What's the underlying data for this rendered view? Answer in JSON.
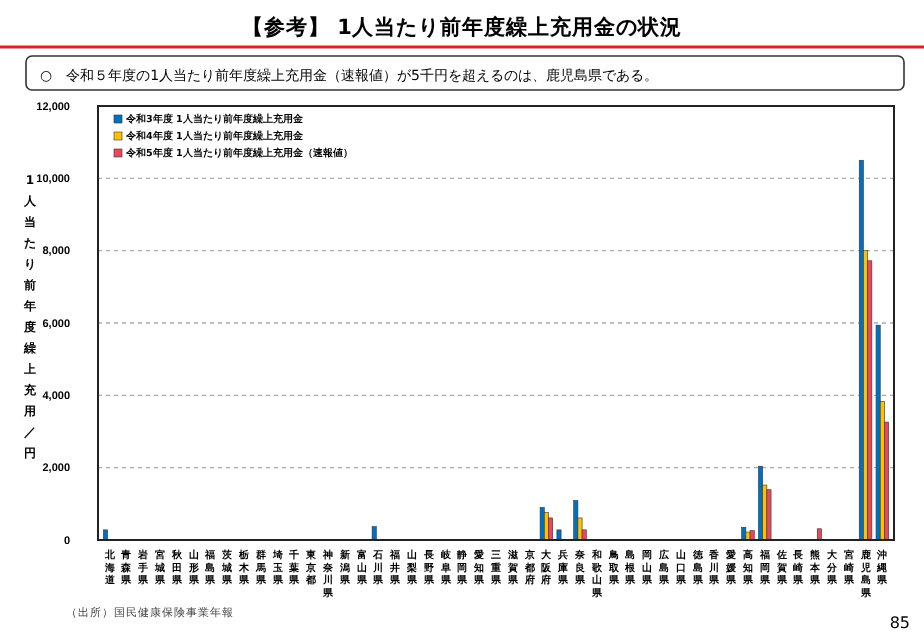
{
  "chart_data": {
    "type": "bar",
    "title": "【参考】 1人当たり前年度繰上充用金の状況",
    "subtitle": "○　令和５年度の1人当たり前年度繰上充用金（速報値）が5千円を超えるのは、鹿児島県である。",
    "ylabel": "1人当たり前年度繰上充用／円",
    "annotations": [
      "（出所）国民健康保険事業年報",
      "85"
    ],
    "categories": [
      "北海道",
      "青森県",
      "岩手県",
      "宮城県",
      "秋田県",
      "山形県",
      "福島県",
      "茨城県",
      "栃木県",
      "群馬県",
      "埼玉県",
      "千葉県",
      "東京都",
      "神奈川県",
      "新潟県",
      "富山県",
      "石川県",
      "福井県",
      "山梨県",
      "長野県",
      "岐阜県",
      "静岡県",
      "愛知県",
      "三重県",
      "滋賀県",
      "京都府",
      "大阪府",
      "兵庫県",
      "奈良県",
      "和歌山県",
      "鳥取県",
      "島根県",
      "岡山県",
      "広島県",
      "山口県",
      "徳島県",
      "香川県",
      "愛媛県",
      "高知県",
      "福岡県",
      "佐賀県",
      "長崎県",
      "熊本県",
      "大分県",
      "宮崎県",
      "鹿児島県",
      "沖縄県"
    ],
    "series": [
      {
        "name": "令和3年度 1人当たり前年度繰上充用金",
        "color": "#0070c0",
        "values": [
          280,
          0,
          0,
          0,
          0,
          0,
          0,
          0,
          0,
          0,
          0,
          null,
          0,
          0,
          0,
          0,
          370,
          0,
          0,
          0,
          0,
          0,
          0,
          0,
          0,
          0,
          900,
          280,
          1090,
          0,
          0,
          0,
          0,
          0,
          0,
          0,
          0,
          0,
          350,
          2040,
          0,
          0,
          0,
          0,
          0,
          10500,
          5940
        ]
      },
      {
        "name": "令和4年度 1人当たり前年度繰上充用金",
        "color": "#ffc000",
        "values": [
          0,
          0,
          0,
          0,
          0,
          0,
          0,
          0,
          0,
          0,
          0,
          null,
          0,
          0,
          0,
          0,
          0,
          0,
          0,
          0,
          0,
          0,
          0,
          0,
          0,
          0,
          760,
          0,
          610,
          0,
          0,
          0,
          0,
          0,
          0,
          0,
          0,
          0,
          220,
          1520,
          0,
          0,
          0,
          0,
          0,
          8000,
          3830
        ]
      },
      {
        "name": "令和5年度 1人当たり前年度繰上充用金（速報値）",
        "color": "#e8485f",
        "values": [
          0,
          0,
          0,
          0,
          0,
          0,
          0,
          0,
          0,
          0,
          0,
          null,
          0,
          0,
          0,
          0,
          0,
          0,
          0,
          0,
          0,
          0,
          0,
          0,
          0,
          0,
          610,
          0,
          280,
          0,
          0,
          0,
          0,
          0,
          0,
          0,
          0,
          0,
          260,
          1390,
          0,
          0,
          310,
          0,
          0,
          7720,
          3260
        ]
      }
    ],
    "ylim": [
      0,
      12000
    ],
    "yticks": [
      0,
      {
        "value": 2000,
        "label": "2,000"
      },
      {
        "value": 4000,
        "label": "4,000"
      },
      {
        "value": 6000,
        "label": "6,000"
      },
      {
        "value": 8000,
        "label": "8,000"
      },
      {
        "value": 10000,
        "label": "10,000"
      },
      {
        "value": 12000,
        "label": "12,000"
      }
    ],
    "grid": "y",
    "legend": "top left"
  }
}
